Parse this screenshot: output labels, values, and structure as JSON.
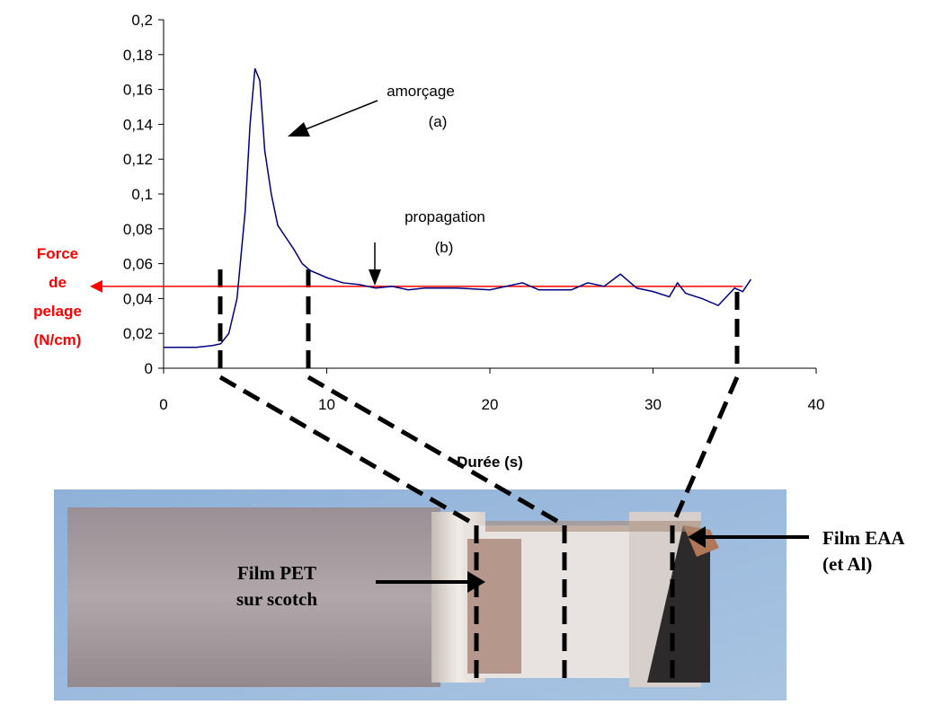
{
  "chart_data": {
    "type": "line",
    "x": [
      0,
      1,
      2,
      3,
      3.5,
      4,
      4.5,
      5,
      5.3,
      5.6,
      5.9,
      6.2,
      6.6,
      7,
      7.5,
      8,
      8.5,
      9,
      10,
      11,
      12,
      13,
      14,
      15,
      16,
      18,
      20,
      22,
      23,
      25,
      26,
      27,
      28,
      29,
      30,
      31,
      31.5,
      32,
      33,
      34,
      35,
      35.5,
      36
    ],
    "series": [
      {
        "color": "#000080",
        "values": [
          0.012,
          0.012,
          0.012,
          0.013,
          0.014,
          0.02,
          0.04,
          0.09,
          0.14,
          0.172,
          0.165,
          0.125,
          0.1,
          0.082,
          0.075,
          0.068,
          0.06,
          0.056,
          0.052,
          0.049,
          0.048,
          0.046,
          0.047,
          0.045,
          0.046,
          0.046,
          0.045,
          0.049,
          0.045,
          0.045,
          0.049,
          0.047,
          0.054,
          0.046,
          0.044,
          0.041,
          0.049,
          0.043,
          0.04,
          0.036,
          0.046,
          0.044,
          0.051
        ]
      }
    ],
    "xlim": [
      0,
      40
    ],
    "xticks": [
      0,
      10,
      20,
      30,
      40
    ],
    "ylim": [
      0,
      0.2
    ],
    "yticks": [
      0,
      {
        "value": 0.02,
        "label": "0,02"
      },
      {
        "value": 0.04,
        "label": "0,04"
      },
      {
        "value": 0.06,
        "label": "0,06"
      },
      {
        "value": 0.08,
        "label": "0,08"
      },
      {
        "value": 0.1,
        "label": "0,1"
      },
      {
        "value": 0.12,
        "label": "0,12"
      },
      {
        "value": 0.14,
        "label": "0,14"
      },
      {
        "value": 0.16,
        "label": "0,16"
      },
      {
        "value": 0.18,
        "label": "0,18"
      },
      {
        "value": 0.2,
        "label": "0,2"
      }
    ],
    "xlabel": "Durée (s)",
    "reference_line": {
      "value": 0.047,
      "color": "#ff0000",
      "label": [
        "Force",
        "de",
        "pelage",
        "(N/cm)"
      ]
    },
    "annotations": [
      [
        "amorçage",
        "(a)"
      ],
      [
        "propagation",
        "(b)"
      ]
    ],
    "photo_labels": [
      [
        "Film PET",
        "sur scotch"
      ],
      [
        "Film EAA",
        "(et Al)"
      ]
    ]
  }
}
